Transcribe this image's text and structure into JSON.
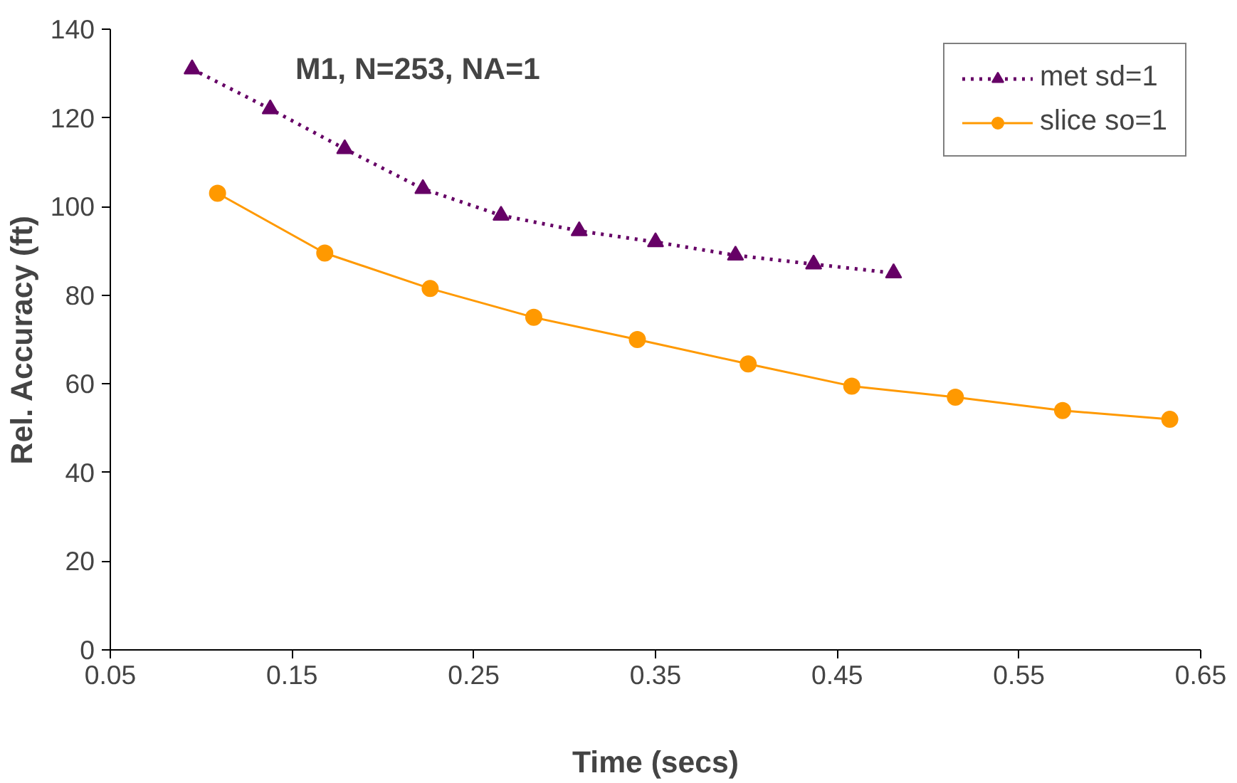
{
  "chart_data": {
    "type": "line",
    "xlabel": "Time (secs)",
    "ylabel": "Rel. Accuracy (ft)",
    "annotations": [
      "M1, N=253, NA=1"
    ],
    "xlim": [
      0.05,
      0.65
    ],
    "xticks": [
      0.05,
      0.15,
      0.25,
      0.35,
      0.45,
      0.55,
      0.65
    ],
    "ylim": [
      0,
      140
    ],
    "yticks": [
      0,
      20,
      40,
      60,
      80,
      100,
      120,
      140
    ],
    "grid": false,
    "legend": "top right",
    "series": [
      {
        "name": "met sd=1",
        "color": "#660066",
        "marker": "triangle",
        "line_style": "dotted",
        "x": [
          0.095,
          0.138,
          0.179,
          0.222,
          0.265,
          0.308,
          0.35,
          0.394,
          0.437,
          0.481
        ],
        "values": [
          131,
          122,
          113,
          104,
          98,
          94.5,
          92,
          89,
          87,
          85
        ]
      },
      {
        "name": "slice so=1",
        "color": "#ff9900",
        "marker": "circle",
        "line_style": "solid",
        "x": [
          0.109,
          0.168,
          0.226,
          0.283,
          0.34,
          0.401,
          0.458,
          0.515,
          0.574,
          0.633
        ],
        "values": [
          103,
          89.5,
          81.5,
          75,
          70,
          64.5,
          59.5,
          57,
          54,
          52
        ]
      }
    ]
  }
}
